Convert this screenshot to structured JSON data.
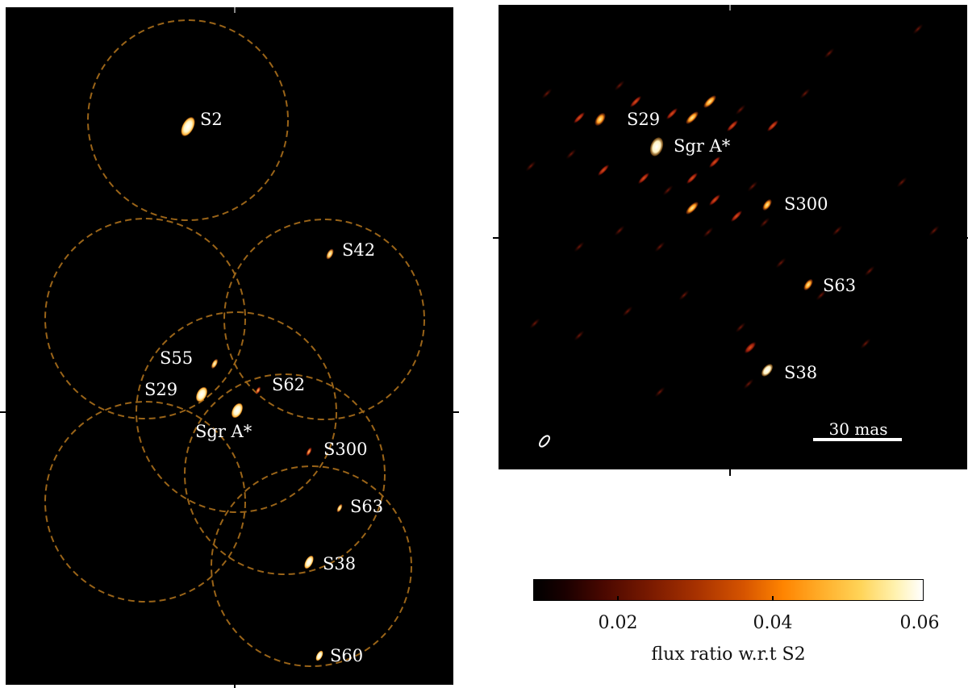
{
  "left": {
    "labels": {
      "s2": "S2",
      "s42": "S42",
      "s55": "S55",
      "s29": "S29",
      "s62": "S62",
      "sgra": "Sgr A*",
      "s300": "S300",
      "s63": "S63",
      "s38": "S38",
      "s60": "S60"
    }
  },
  "right": {
    "labels": {
      "s29": "S29",
      "sgra": "Sgr A*",
      "s300": "S300",
      "s63": "S63",
      "s38": "S38"
    },
    "scalebar_label": "30 mas"
  },
  "colorbar": {
    "title": "flux ratio w.r.t S2",
    "tick_labels": [
      "0.02",
      "0.04",
      "0.06"
    ],
    "range": [
      0.009,
      0.061
    ],
    "colormap": "afmhot"
  },
  "colors": {
    "background": "#000000",
    "circle_stroke": "#9a6418",
    "source_bright": "#fff8d0",
    "source_orange": "#ff9a1a",
    "source_red": "#c8321a"
  }
}
